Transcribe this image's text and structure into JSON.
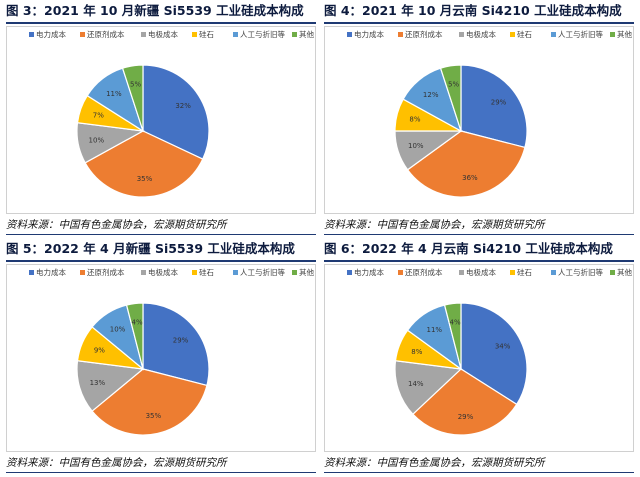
{
  "colors": {
    "电力成本": "#4472c4",
    "还原剂成本": "#ed7d31",
    "电极成本": "#a5a5a5",
    "硅石": "#ffc000",
    "人工与折旧等": "#5b9bd5",
    "其他": "#70ad47"
  },
  "chart_data": [
    {
      "type": "pie",
      "title": "图 3：2021 年 10 月新疆 Si5539 工业硅成本构成",
      "source": "资料来源：中国有色金属协会，宏源期货研究所",
      "legend_position": "top",
      "categories": [
        "电力成本",
        "还原剂成本",
        "电极成本",
        "硅石",
        "人工与折旧等",
        "其他"
      ],
      "values": [
        32,
        35,
        10,
        7,
        11,
        5
      ],
      "labels": [
        "32%",
        "35%",
        "10%",
        "7%",
        "11%",
        "5%"
      ]
    },
    {
      "type": "pie",
      "title": "图 4：2021 年 10 月云南 Si4210 工业硅成本构成",
      "source": "资料来源：中国有色金属协会，宏源期货研究所",
      "legend_position": "top",
      "categories": [
        "电力成本",
        "还原剂成本",
        "电极成本",
        "硅石",
        "人工与折旧等",
        "其他"
      ],
      "values": [
        29,
        36,
        10,
        8,
        12,
        5
      ],
      "labels": [
        "29%",
        "36%",
        "10%",
        "8%",
        "12%",
        "5%"
      ]
    },
    {
      "type": "pie",
      "title": "图 5：2022 年 4 月新疆 Si5539 工业硅成本构成",
      "source": "资料来源：中国有色金属协会，宏源期货研究所",
      "legend_position": "top",
      "categories": [
        "电力成本",
        "还原剂成本",
        "电极成本",
        "硅石",
        "人工与折旧等",
        "其他"
      ],
      "values": [
        29,
        35,
        13,
        9,
        10,
        4
      ],
      "labels": [
        "29%",
        "35%",
        "13%",
        "9%",
        "10%",
        "4%"
      ]
    },
    {
      "type": "pie",
      "title": "图 6：2022 年 4 月云南 Si4210 工业硅成本构成",
      "source": "资料来源：中国有色金属协会，宏源期货研究所",
      "legend_position": "top",
      "categories": [
        "电力成本",
        "还原剂成本",
        "电极成本",
        "硅石",
        "人工与折旧等",
        "其他"
      ],
      "values": [
        34,
        29,
        14,
        8,
        11,
        4
      ],
      "labels": [
        "34%",
        "29%",
        "14%",
        "8%",
        "11%",
        "4%"
      ]
    }
  ]
}
